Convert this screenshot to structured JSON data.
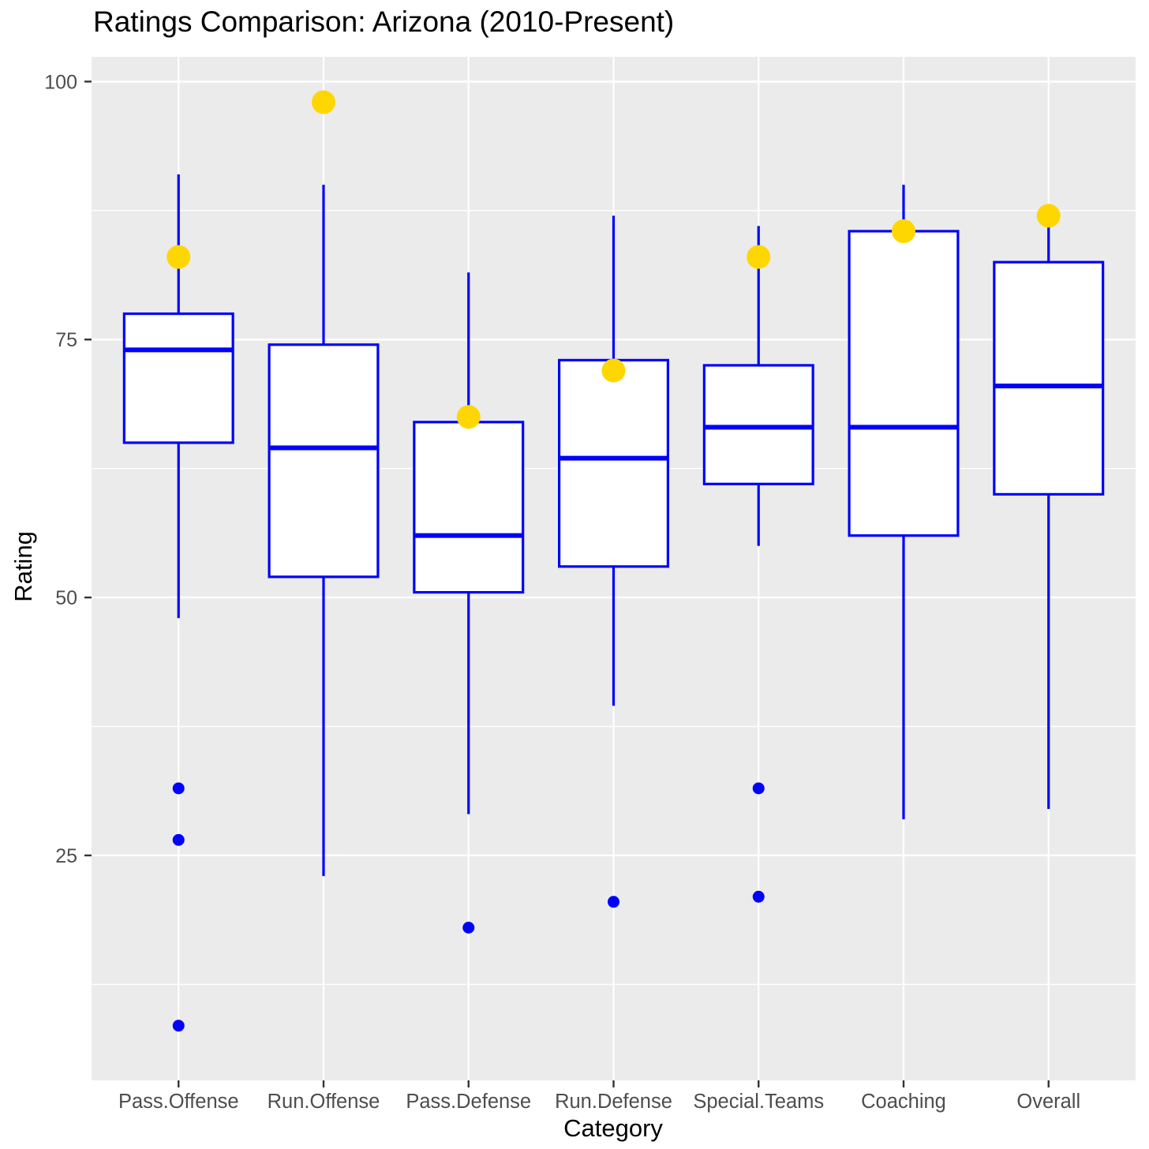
{
  "chart_data": {
    "type": "boxplot",
    "title": "Ratings Comparison: Arizona (2010-Present)",
    "xlabel": "Category",
    "ylabel": "Rating",
    "ylim": [
      3.2,
      102.4
    ],
    "yticks": [
      25,
      50,
      75,
      100
    ],
    "yticks_minor": [
      12.5,
      37.5,
      62.5,
      87.5
    ],
    "grid": "on",
    "legend": "none",
    "categories": [
      "Pass.Offense",
      "Run.Offense",
      "Pass.Defense",
      "Run.Defense",
      "Special.Teams",
      "Coaching",
      "Overall"
    ],
    "series": [
      {
        "name": "Pass.Offense",
        "whisker_low": 48,
        "q1": 65,
        "median": 74,
        "q3": 77.5,
        "whisker_high": 91,
        "outliers": [
          31.5,
          26.5,
          8.5
        ],
        "highlight": 83
      },
      {
        "name": "Run.Offense",
        "whisker_low": 23,
        "q1": 52,
        "median": 64.5,
        "q3": 74.5,
        "whisker_high": 90,
        "outliers": [],
        "highlight": 98
      },
      {
        "name": "Pass.Defense",
        "whisker_low": 29,
        "q1": 50.5,
        "median": 56,
        "q3": 67,
        "whisker_high": 81.5,
        "outliers": [
          18
        ],
        "highlight": 67.5
      },
      {
        "name": "Run.Defense",
        "whisker_low": 39.5,
        "q1": 53,
        "median": 63.5,
        "q3": 73,
        "whisker_high": 87,
        "outliers": [
          20.5
        ],
        "highlight": 72
      },
      {
        "name": "Special.Teams",
        "whisker_low": 55,
        "q1": 61,
        "median": 66.5,
        "q3": 72.5,
        "whisker_high": 86,
        "outliers": [
          31.5,
          21
        ],
        "highlight": 83
      },
      {
        "name": "Coaching",
        "whisker_low": 28.5,
        "q1": 56,
        "median": 66.5,
        "q3": 85.5,
        "whisker_high": 90,
        "outliers": [],
        "highlight": 85.5
      },
      {
        "name": "Overall",
        "whisker_low": 29.5,
        "q1": 60,
        "median": 70.5,
        "q3": 82.5,
        "whisker_high": 88,
        "outliers": [],
        "highlight": 87
      }
    ],
    "colors": {
      "box_stroke": "#0000FF",
      "box_fill": "#FFFFFF",
      "median": "#0000FF",
      "outlier": "#0000FF",
      "highlight": "#FFD700",
      "panel_bg": "#EBEBEB",
      "gridline": "#FFFFFF",
      "tick_mark": "#333333",
      "tick_label": "#4D4D4D",
      "axis_title": "#000000",
      "title": "#000000"
    }
  }
}
